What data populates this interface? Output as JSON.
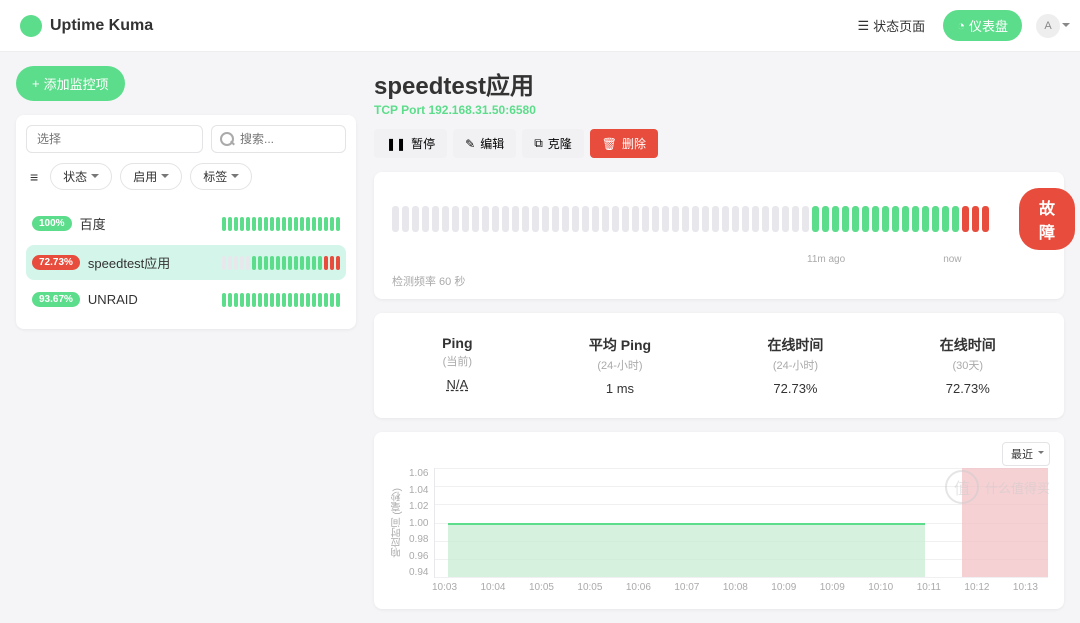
{
  "colors": {
    "green": "#5cdd8b",
    "red": "#e74c3c",
    "lightGreen": "#c8edd3",
    "lightRed": "#f2c2c6",
    "gray": "#e8e8ec"
  },
  "topbar": {
    "brand": "Uptime Kuma",
    "statusPage": "状态页面",
    "dashboard": "仪表盘",
    "avatar": "A"
  },
  "sidebar": {
    "addBtn": "添加监控项",
    "filterPlaceholder": "选择",
    "searchPlaceholder": "搜索...",
    "filters": [
      "状态",
      "启用",
      "标签"
    ],
    "monitors": [
      {
        "pct": "100%",
        "color": "#5cdd8b",
        "name": "百度",
        "bars": [
          "g",
          "g",
          "g",
          "g",
          "g",
          "g",
          "g",
          "g",
          "g",
          "g",
          "g",
          "g",
          "g",
          "g",
          "g",
          "g",
          "g",
          "g",
          "g",
          "g"
        ],
        "active": false
      },
      {
        "pct": "72.73%",
        "color": "#e74c3c",
        "name": "speedtest应用",
        "bars": [
          "e",
          "e",
          "e",
          "e",
          "e",
          "g",
          "g",
          "g",
          "g",
          "g",
          "g",
          "g",
          "g",
          "g",
          "g",
          "g",
          "g",
          "r",
          "r",
          "r"
        ],
        "active": true
      },
      {
        "pct": "93.67%",
        "color": "#5cdd8b",
        "name": "UNRAID",
        "bars": [
          "g",
          "g",
          "g",
          "g",
          "g",
          "g",
          "g",
          "g",
          "g",
          "g",
          "g",
          "g",
          "g",
          "g",
          "g",
          "g",
          "g",
          "g",
          "g",
          "g"
        ],
        "active": false
      }
    ]
  },
  "detail": {
    "title": "speedtest应用",
    "subtitle": "TCP Port 192.168.31.50:6580",
    "actions": {
      "pause": "暂停",
      "edit": "编辑",
      "clone": "克隆",
      "delete": "删除"
    },
    "heartbeat": {
      "bars": [
        "e",
        "e",
        "e",
        "e",
        "e",
        "e",
        "e",
        "e",
        "e",
        "e",
        "e",
        "e",
        "e",
        "e",
        "e",
        "e",
        "e",
        "e",
        "e",
        "e",
        "e",
        "e",
        "e",
        "e",
        "e",
        "e",
        "e",
        "e",
        "e",
        "e",
        "e",
        "e",
        "e",
        "e",
        "e",
        "e",
        "e",
        "e",
        "e",
        "e",
        "e",
        "e",
        "g",
        "g",
        "g",
        "g",
        "g",
        "g",
        "g",
        "g",
        "g",
        "g",
        "g",
        "g",
        "g",
        "g",
        "g",
        "r",
        "r",
        "r"
      ],
      "agoLabel": "11m ago",
      "nowLabel": "now",
      "statusText": "故障",
      "statusColor": "#e74c3c",
      "freq": "检测频率 60 秒"
    },
    "stats": [
      {
        "label": "Ping",
        "sub": "(当前)",
        "val": "N/A",
        "dashed": true
      },
      {
        "label": "平均 Ping",
        "sub": "(24-小时)",
        "val": "1 ms",
        "dashed": false
      },
      {
        "label": "在线时间",
        "sub": "(24-小时)",
        "val": "72.73%",
        "dashed": false
      },
      {
        "label": "在线时间",
        "sub": "(30天)",
        "val": "72.73%",
        "dashed": false
      }
    ],
    "chart": {
      "rangeLabel": "最近",
      "yLabel": "响应时间 (毫秒)",
      "yTicks": [
        "1.06",
        "1.04",
        "1.02",
        "1.00",
        "0.98",
        "0.96",
        "0.94"
      ],
      "yMin": 0.94,
      "yMax": 1.06,
      "xTicks": [
        "10:03",
        "10:04",
        "10:05",
        "10:05",
        "10:06",
        "10:07",
        "10:08",
        "10:09",
        "10:09",
        "10:10",
        "10:11",
        "10:12",
        "10:13"
      ],
      "greenStartPct": 2,
      "greenEndPct": 80,
      "greenValue": 1.0,
      "redStartPct": 86,
      "redEndPct": 100,
      "redValue": 1.06
    }
  },
  "watermark": "什么值得买"
}
